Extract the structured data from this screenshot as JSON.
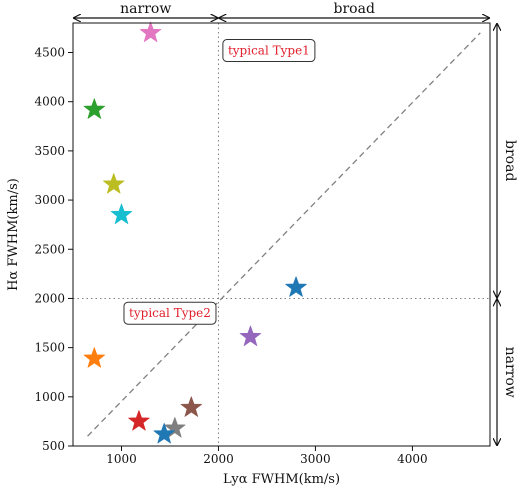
{
  "chart_data": {
    "type": "scatter",
    "title": "",
    "xlabel": "Lyα FWHM(km/s)",
    "ylabel": "Hα FWHM(km/s)",
    "xlim": [
      500,
      4800
    ],
    "ylim": [
      500,
      4800
    ],
    "xticks": [
      1000,
      2000,
      3000,
      4000
    ],
    "yticks": [
      500,
      1000,
      1500,
      2000,
      2500,
      3000,
      3500,
      4000,
      4500
    ],
    "marker": "star",
    "grid": false,
    "legend": "none",
    "reference_line": {
      "style": "dashed",
      "color": "#808080",
      "x": [
        650,
        4700
      ],
      "y": [
        600,
        4700
      ]
    },
    "divider_lines": {
      "x": 2000,
      "y": 2000,
      "style": "dotted",
      "color": "#808080"
    },
    "points": [
      {
        "x": 1300,
        "y": 4700,
        "color": "#e377c2"
      },
      {
        "x": 720,
        "y": 3920,
        "color": "#2ca02c"
      },
      {
        "x": 920,
        "y": 3160,
        "color": "#bcbd22"
      },
      {
        "x": 1000,
        "y": 2850,
        "color": "#17becf"
      },
      {
        "x": 2800,
        "y": 2110,
        "color": "#1f77b4"
      },
      {
        "x": 2330,
        "y": 1610,
        "color": "#9467bd"
      },
      {
        "x": 720,
        "y": 1390,
        "color": "#ff7f0e"
      },
      {
        "x": 1720,
        "y": 890,
        "color": "#8c564b"
      },
      {
        "x": 1180,
        "y": 750,
        "color": "#d62728"
      },
      {
        "x": 1550,
        "y": 680,
        "color": "#7f7f7f"
      },
      {
        "x": 1440,
        "y": 620,
        "color": "#1f77b4"
      }
    ],
    "annotations": [
      {
        "id": "type1",
        "text": "typical Type1",
        "x": 2520,
        "y": 4520
      },
      {
        "id": "type2",
        "text": "typical Type2",
        "x": 1500,
        "y": 1850
      }
    ],
    "bands": {
      "top_left": "narrow",
      "top_right": "broad",
      "right_upper": "broad",
      "right_lower": "narrow"
    }
  }
}
